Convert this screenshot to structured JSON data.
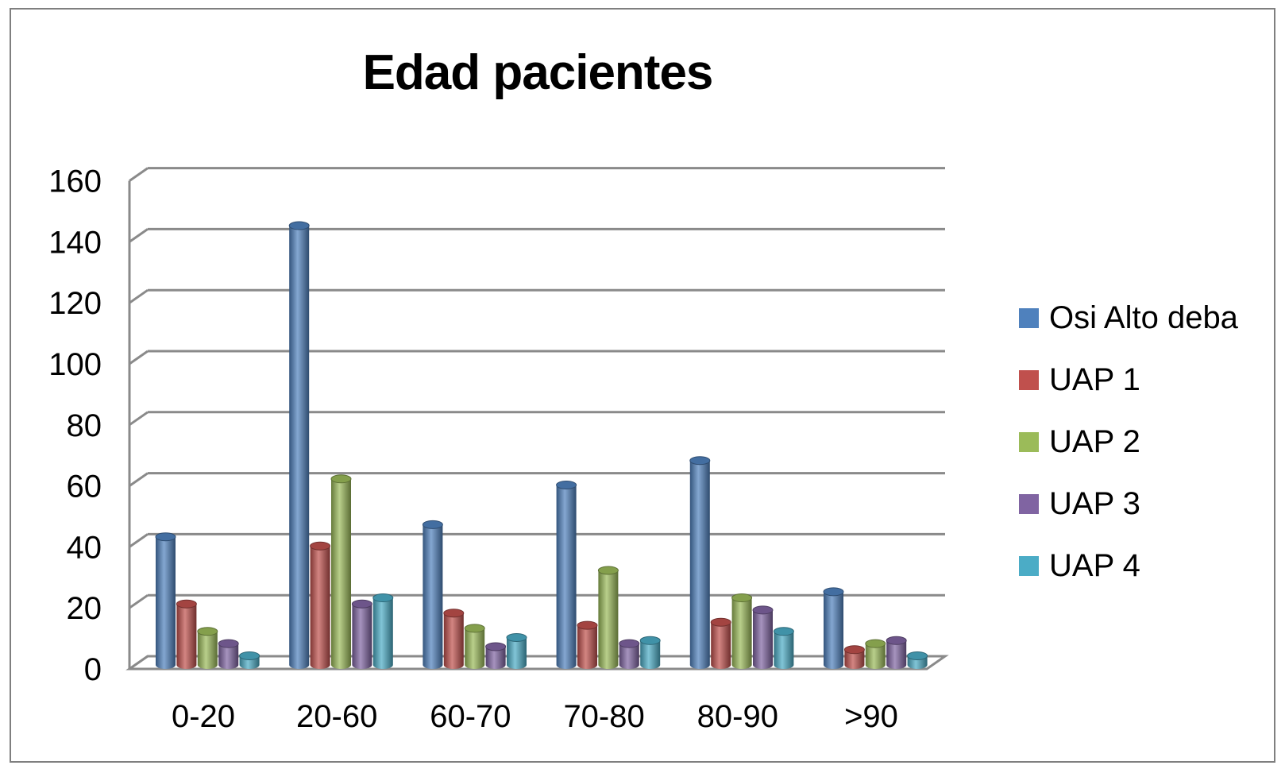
{
  "chart_data": {
    "type": "bar",
    "style": "3d-cylinder",
    "title": "Edad pacientes",
    "categories": [
      "0-20",
      "20-60",
      "60-70",
      "70-80",
      "80-90",
      ">90"
    ],
    "series": [
      {
        "name": "Osi Alto deba",
        "color": "#4F81BD",
        "values": [
          42,
          144,
          46,
          59,
          67,
          24
        ]
      },
      {
        "name": "UAP 1",
        "color": "#C0504D",
        "values": [
          20,
          39,
          17,
          13,
          14,
          5
        ]
      },
      {
        "name": "UAP 2",
        "color": "#9BBB59",
        "values": [
          11,
          61,
          12,
          31,
          22,
          7
        ]
      },
      {
        "name": "UAP 3",
        "color": "#8064A2",
        "values": [
          7,
          20,
          6,
          7,
          18,
          8
        ]
      },
      {
        "name": "UAP 4",
        "color": "#4BACC6",
        "values": [
          3,
          22,
          9,
          8,
          11,
          3
        ]
      }
    ],
    "xlabel": "",
    "ylabel": "",
    "ylim": [
      0,
      160
    ],
    "yticks": [
      0,
      20,
      40,
      60,
      80,
      100,
      120,
      140,
      160
    ],
    "grid": true,
    "legend_position": "right",
    "gridline_color": "#8A8A8A",
    "border_color": "#7F7F7F",
    "text_color": "#000000",
    "background": "#FFFFFF"
  }
}
